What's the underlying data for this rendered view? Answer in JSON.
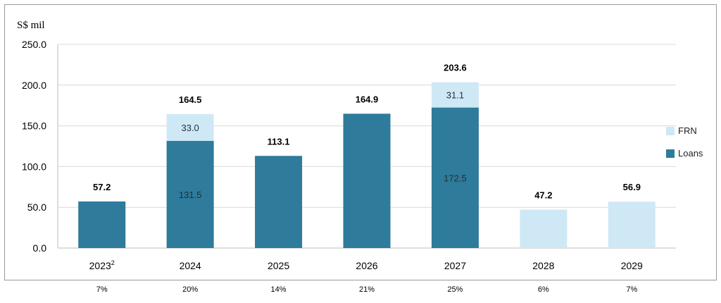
{
  "chart_data": {
    "type": "bar",
    "stacked": true,
    "ylabel": "S$ mil",
    "ylim": [
      0,
      250
    ],
    "yticks": [
      "0.0",
      "50.0",
      "100.0",
      "150.0",
      "200.0",
      "250.0"
    ],
    "categories": [
      "2023",
      "2024",
      "2025",
      "2026",
      "2027",
      "2028",
      "2029"
    ],
    "category_superscripts": [
      "2",
      "",
      "",
      "",
      "",
      "",
      ""
    ],
    "series": [
      {
        "name": "Loans",
        "color": "#2e7b9b",
        "values": [
          57.2,
          131.5,
          113.1,
          164.9,
          172.5,
          0,
          0
        ]
      },
      {
        "name": "FRN",
        "color": "#cfe8f6",
        "values": [
          0,
          33.0,
          0,
          0,
          31.1,
          47.2,
          56.9
        ]
      }
    ],
    "segment_labels": {
      "Loans": [
        "",
        "131.5",
        "",
        "",
        "172.5",
        "",
        ""
      ],
      "FRN": [
        "",
        "33.0",
        "",
        "",
        "31.1",
        "",
        ""
      ]
    },
    "totals": [
      "57.2",
      "164.5",
      "113.1",
      "164.9",
      "203.6",
      "47.2",
      "56.9"
    ],
    "percentages": [
      "7%",
      "20%",
      "14%",
      "21%",
      "25%",
      "6%",
      "7%"
    ],
    "legend": [
      "FRN",
      "Loans"
    ],
    "legend_position": "right",
    "grid": true
  }
}
